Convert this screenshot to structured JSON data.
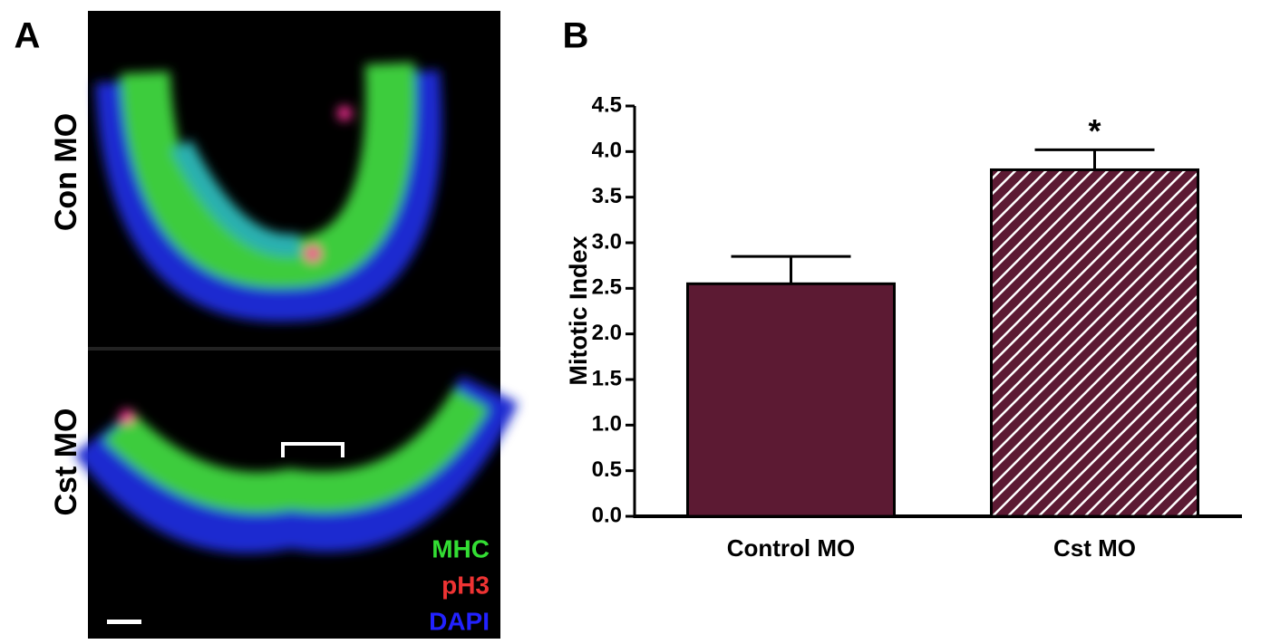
{
  "panel_a": {
    "label": "A",
    "rows": [
      "Con MO",
      "Cst MO"
    ],
    "stains": [
      {
        "name": "MHC",
        "color": "#33dd33"
      },
      {
        "name": "pH3",
        "color": "#ee3333"
      },
      {
        "name": "DAPI",
        "color": "#2222ff"
      }
    ]
  },
  "chart_data": {
    "type": "bar",
    "panel_label": "B",
    "ylabel": "Mitotic Index",
    "categories": [
      "Control MO",
      "Cst MO"
    ],
    "values": [
      2.55,
      3.8
    ],
    "errors": [
      0.3,
      0.22
    ],
    "colors": [
      "#5c1a33",
      "#5c1a33"
    ],
    "hatched": [
      false,
      true
    ],
    "annotations": [
      {
        "category": 1,
        "text": "*"
      }
    ],
    "ylim": [
      0,
      4.5
    ],
    "yticks": [
      {
        "value": 0,
        "label": "0.0"
      },
      {
        "value": 0.5,
        "label": "0.5"
      },
      {
        "value": 1,
        "label": "1.0"
      },
      {
        "value": 1.5,
        "label": "1.5"
      },
      {
        "value": 2,
        "label": "2.0"
      },
      {
        "value": 2.5,
        "label": "2.5"
      },
      {
        "value": 3,
        "label": "3.0"
      },
      {
        "value": 3.5,
        "label": "3.5"
      },
      {
        "value": 4,
        "label": "4.0"
      },
      {
        "value": 4.5,
        "label": "4.5"
      }
    ]
  }
}
